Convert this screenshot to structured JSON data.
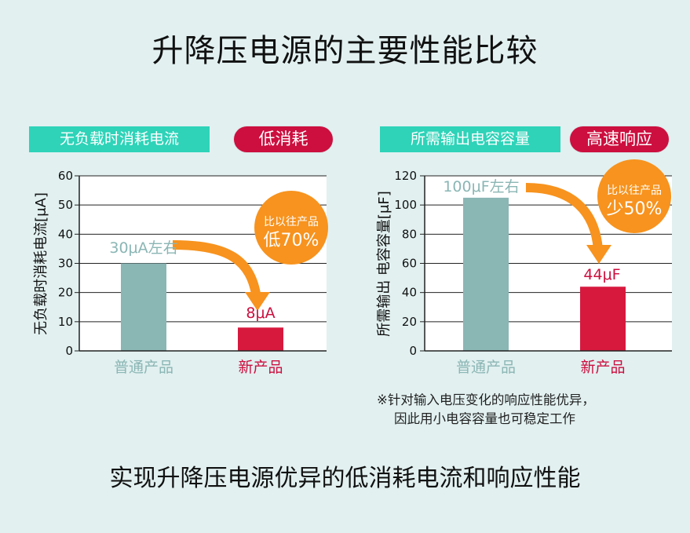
{
  "title": "升降压电源的主要性能比较",
  "footer": "实现升降压电源优异的低消耗电流和响应性能",
  "colors": {
    "background": "#e2f0f0",
    "tag": "#2ed3b8",
    "pill": "#cc0f3f",
    "normal_bar": "#8ab6b4",
    "new_bar": "#d7193e",
    "callout": "#f7931e"
  },
  "left_panel": {
    "tag": "无负载时消耗电流",
    "pill": "低消耗",
    "callout_line1": "比以往产品",
    "callout_line2": "低70%",
    "normal_value_label": "30μA左右",
    "new_value_label": "8μA"
  },
  "right_panel": {
    "tag": "所需输出电容容量",
    "pill": "高速响应",
    "callout_line1": "比以往产品",
    "callout_line2": "少50%",
    "normal_value_label": "100μF左右",
    "new_value_label": "44μF"
  },
  "note": {
    "line1": "※针对输入电压变化的响应性能优异，",
    "line2": "因此用小电容容量也可稳定工作"
  },
  "chart_data": [
    {
      "type": "bar",
      "categories": [
        "普通产品",
        "新产品"
      ],
      "values": [
        30,
        8
      ],
      "ylabel": "无负载时消耗电流[μA]",
      "ylim": [
        0,
        60
      ],
      "yticks": [
        0,
        10,
        20,
        30,
        40,
        50,
        60
      ],
      "grid": true
    },
    {
      "type": "bar",
      "categories": [
        "普通产品",
        "新产品"
      ],
      "values": [
        105,
        44
      ],
      "ylabel": "所需输出 电容容量[μF]",
      "ylim": [
        0,
        120
      ],
      "yticks": [
        0,
        20,
        40,
        60,
        80,
        100,
        120
      ],
      "grid": true
    }
  ]
}
